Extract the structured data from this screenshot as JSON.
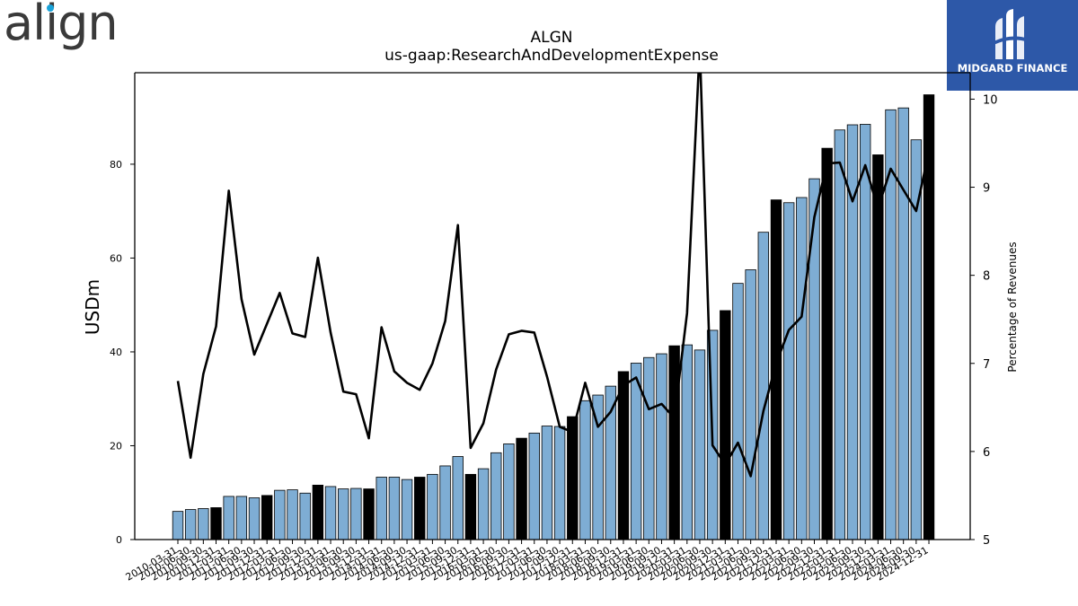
{
  "logos": {
    "left_text": "align",
    "right_text": "MIDGARD FINANCE"
  },
  "chart_data": {
    "type": "bar+line",
    "title": "ALGN",
    "subtitle": "us-gaap:ResearchAndDevelopmentExpense",
    "ylabel": "USDm",
    "y2label": "Percentage of Revenues",
    "ylim": [
      0,
      99.5
    ],
    "y2lim": [
      5,
      10.3
    ],
    "yticks": [
      0,
      20,
      40,
      60,
      80
    ],
    "y2ticks": [
      5,
      6,
      7,
      8,
      9,
      10
    ],
    "colors": {
      "quarter_bar": "#7eadd4",
      "annual_bar": "#000000",
      "line": "#000000"
    },
    "categories": [
      "2010-03-31",
      "2010-06-30",
      "2010-09-30",
      "2010-12-31",
      "2011-03-31",
      "2011-06-30",
      "2011-09-30",
      "2011-12-31",
      "2012-03-31",
      "2012-06-30",
      "2012-09-30",
      "2012-12-31",
      "2013-03-31",
      "2013-06-30",
      "2013-09-30",
      "2013-12-31",
      "2014-03-31",
      "2014-06-30",
      "2014-09-30",
      "2014-12-31",
      "2015-03-31",
      "2015-06-30",
      "2015-09-30",
      "2015-12-31",
      "2016-03-31",
      "2016-06-30",
      "2016-09-30",
      "2016-12-31",
      "2017-03-31",
      "2017-06-30",
      "2017-09-30",
      "2017-12-31",
      "2018-03-31",
      "2018-06-30",
      "2018-09-30",
      "2018-12-31",
      "2019-03-31",
      "2019-06-30",
      "2019-09-30",
      "2019-12-31",
      "2020-03-31",
      "2020-06-30",
      "2020-09-30",
      "2020-12-31",
      "2021-03-31",
      "2021-06-30",
      "2021-09-30",
      "2021-12-31",
      "2022-03-31",
      "2022-06-30",
      "2022-09-30",
      "2022-12-31",
      "2023-03-31",
      "2023-06-30",
      "2023-09-30",
      "2023-12-31",
      "2024-03-31",
      "2024-06-30",
      "2024-09-30",
      "2024-12-31"
    ],
    "series": [
      {
        "type": "bar",
        "values": [
          6.0,
          6.4,
          6.6,
          6.8,
          9.2,
          9.2,
          8.9,
          9.4,
          10.5,
          10.6,
          9.9,
          11.6,
          11.3,
          10.8,
          10.9,
          10.8,
          13.3,
          13.3,
          12.8,
          13.3,
          13.9,
          15.7,
          17.7,
          13.9,
          15.1,
          18.5,
          20.4,
          21.6,
          22.7,
          24.2,
          24.1,
          26.2,
          29.6,
          30.8,
          32.7,
          35.8,
          37.6,
          38.8,
          39.6,
          41.3,
          41.5,
          40.4,
          44.6,
          48.8,
          54.6,
          57.5,
          65.5,
          72.4,
          71.8,
          72.9,
          76.9,
          83.4,
          87.3,
          88.4,
          88.5,
          82.0,
          91.6,
          92.0,
          85.2,
          94.8
        ],
        "annual": [
          false,
          false,
          false,
          true,
          false,
          false,
          false,
          true,
          false,
          false,
          false,
          true,
          false,
          false,
          false,
          true,
          false,
          false,
          false,
          true,
          false,
          false,
          false,
          true,
          false,
          false,
          false,
          true,
          false,
          false,
          false,
          true,
          false,
          false,
          false,
          true,
          false,
          false,
          false,
          true,
          false,
          false,
          false,
          true,
          false,
          false,
          false,
          true,
          false,
          false,
          false,
          true,
          false,
          false,
          false,
          true,
          false,
          false,
          false,
          true
        ]
      },
      {
        "type": "line",
        "values": [
          6.8,
          5.93,
          6.88,
          7.42,
          8.96,
          7.73,
          7.1,
          7.45,
          7.8,
          7.34,
          7.3,
          8.2,
          7.35,
          6.68,
          6.65,
          6.15,
          7.41,
          6.91,
          6.78,
          6.7,
          7.0,
          7.48,
          8.57,
          6.04,
          6.32,
          6.93,
          7.33,
          7.37,
          7.35,
          6.85,
          6.28,
          6.22,
          6.78,
          6.28,
          6.45,
          6.75,
          6.84,
          6.48,
          6.54,
          6.38,
          7.57,
          10.6,
          6.07,
          5.85,
          6.1,
          5.72,
          6.46,
          7.0,
          7.38,
          7.53,
          8.66,
          9.27,
          9.28,
          8.84,
          9.25,
          8.76,
          9.21,
          8.97,
          8.73,
          9.41
        ]
      }
    ]
  }
}
